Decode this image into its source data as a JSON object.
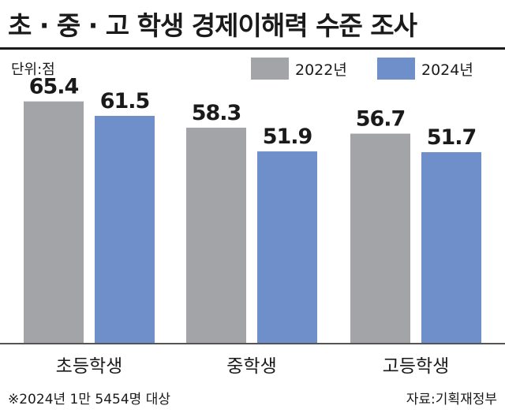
{
  "title": "초 · 중 · 고 학생 경제이해력 수준 조사",
  "unit": "단위:점",
  "footnote": "※2024년 1만 5454명 대상",
  "source": "자료:기획재정부",
  "colors": {
    "series_2022": "#a3a4a8",
    "series_2024": "#6f8fcb",
    "axis": "#555555"
  },
  "chart_data": {
    "type": "bar",
    "categories": [
      "초등학생",
      "중학생",
      "고등학생"
    ],
    "series": [
      {
        "name": "2022년",
        "values": [
          65.4,
          58.3,
          56.7
        ],
        "labels": [
          "65.4",
          "58.3",
          "56.7"
        ]
      },
      {
        "name": "2024년",
        "values": [
          61.5,
          51.9,
          51.7
        ],
        "labels": [
          "61.5",
          "51.9",
          "51.7"
        ]
      }
    ],
    "ylim": [
      0,
      71.5
    ],
    "grid": false,
    "legend_position": "top-right"
  }
}
